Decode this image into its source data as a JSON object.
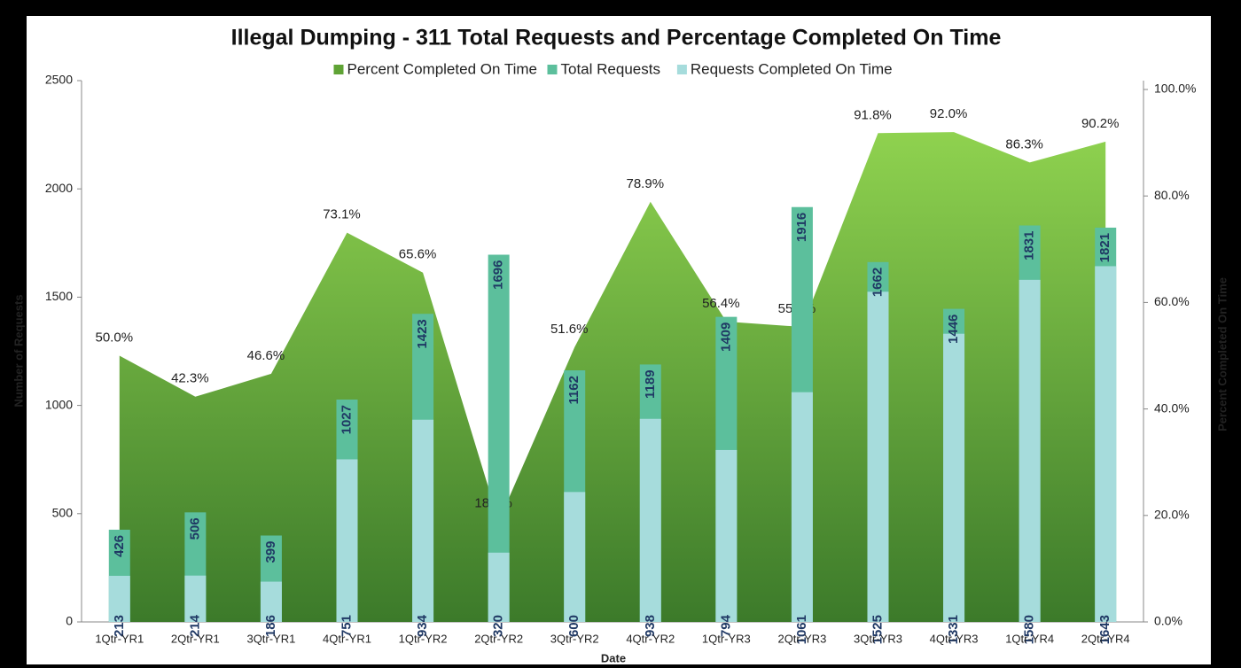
{
  "chart_data": {
    "type": "bar",
    "title": "Illegal Dumping - 311 Total Requests and Percentage Completed On Time",
    "x_label": "Date",
    "y_label": "Number of Requests",
    "y2_label": "Percent Completed On Time",
    "categories": [
      "1Qtr-YR1",
      "2Qtr-YR1",
      "3Qtr-YR1",
      "4Qtr-YR1",
      "1Qtr-YR2",
      "2Qtr-YR2",
      "3Qtr-YR2",
      "4Qtr-YR2",
      "1Qtr-YR3",
      "2Qtr-YR3",
      "3Qtr-YR3",
      "4Qtr-YR3",
      "1Qtr-YR4",
      "2Qtr-YR4"
    ],
    "series": [
      {
        "name": "Percent Completed On Time",
        "type": "area",
        "axis": "y2",
        "color": "#5fa335",
        "values": [
          50.0,
          42.3,
          46.6,
          73.1,
          65.6,
          18.9,
          51.6,
          78.9,
          56.4,
          55.4,
          91.8,
          92.0,
          86.3,
          90.2
        ],
        "value_labels": [
          "50.0%",
          "42.3%",
          "46.6%",
          "73.1%",
          "65.6%",
          "18.9%",
          "51.6%",
          "78.9%",
          "56.4%",
          "55.4%",
          "91.8%",
          "92.0%",
          "86.3%",
          "90.2%"
        ]
      },
      {
        "name": "Total Requests",
        "type": "bar",
        "color": "#5cbf9c",
        "values": [
          426,
          506,
          399,
          1027,
          1423,
          1696,
          1162,
          1189,
          1409,
          1916,
          1662,
          1446,
          1831,
          1821
        ]
      },
      {
        "name": "Requests Completed On Time",
        "type": "bar",
        "color": "#a6dcdc",
        "values": [
          213,
          214,
          186,
          751,
          934,
          320,
          600,
          938,
          794,
          1061,
          1525,
          1331,
          1580,
          1643
        ]
      }
    ],
    "ylim": [
      0,
      2500
    ],
    "yticks": [
      0,
      500,
      1000,
      1500,
      2000,
      2500
    ],
    "y2lim": [
      0,
      100
    ],
    "y2ticks": [
      {
        "value": 0,
        "label": "0.0%"
      },
      {
        "value": 20,
        "label": "20.0%"
      },
      {
        "value": 40,
        "label": "40.0%"
      },
      {
        "value": 60,
        "label": "60.0%"
      },
      {
        "value": 80,
        "label": "80.0%"
      },
      {
        "value": 100,
        "label": "100.0%"
      }
    ],
    "legend": "top"
  }
}
